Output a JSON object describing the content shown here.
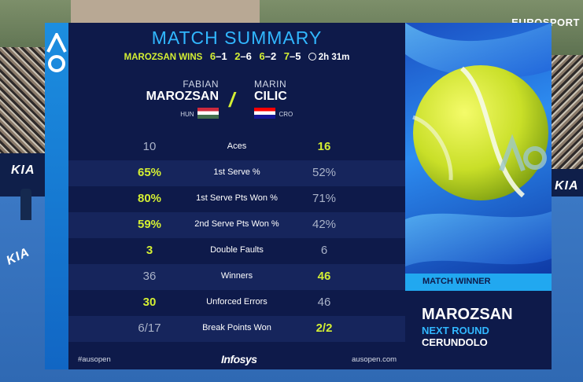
{
  "broadcaster": "EUROSPORT",
  "title": "MATCH SUMMARY",
  "result": {
    "winner_text": "MAROZSAN WINS",
    "sets": [
      {
        "winner": "6",
        "loser": "1",
        "won": true
      },
      {
        "winner": "2",
        "loser": "6",
        "won": false
      },
      {
        "winner": "6",
        "loser": "2",
        "won": true
      },
      {
        "winner": "7",
        "loser": "5",
        "won": true
      }
    ],
    "duration": "2h 31m"
  },
  "player1": {
    "first": "FABIAN",
    "last": "MAROZSAN",
    "country": "HUN"
  },
  "player2": {
    "first": "MARIN",
    "last": "CILIC",
    "country": "CRO"
  },
  "stats": [
    {
      "label": "Aces",
      "p1": "10",
      "p2": "16",
      "hl": "p2"
    },
    {
      "label": "1st Serve %",
      "p1": "65%",
      "p2": "52%",
      "hl": "p1"
    },
    {
      "label": "1st Serve Pts Won %",
      "p1": "80%",
      "p2": "71%",
      "hl": "p1"
    },
    {
      "label": "2nd Serve Pts Won %",
      "p1": "59%",
      "p2": "42%",
      "hl": "p1"
    },
    {
      "label": "Double Faults",
      "p1": "3",
      "p2": "6",
      "hl": "p1"
    },
    {
      "label": "Winners",
      "p1": "36",
      "p2": "46",
      "hl": "p2"
    },
    {
      "label": "Unforced Errors",
      "p1": "30",
      "p2": "46",
      "hl": "p1"
    },
    {
      "label": "Break Points Won",
      "p1": "6/17",
      "p2": "2/2",
      "hl": "p2"
    }
  ],
  "footer": {
    "hashtag": "#ausopen",
    "sponsor": "Infosys",
    "website": "ausopen.com"
  },
  "match_winner": {
    "header": "MATCH WINNER",
    "name": "MAROZSAN",
    "next_label": "NEXT ROUND",
    "next_opponent": "CERUNDOLO"
  },
  "ball_logo": "AO",
  "ad_boards": [
    "KIA",
    "KIA",
    "KIA"
  ],
  "colors": {
    "accent": "#31b7ff",
    "highlight": "#d4ef33",
    "panel": "#0e1a4a"
  }
}
